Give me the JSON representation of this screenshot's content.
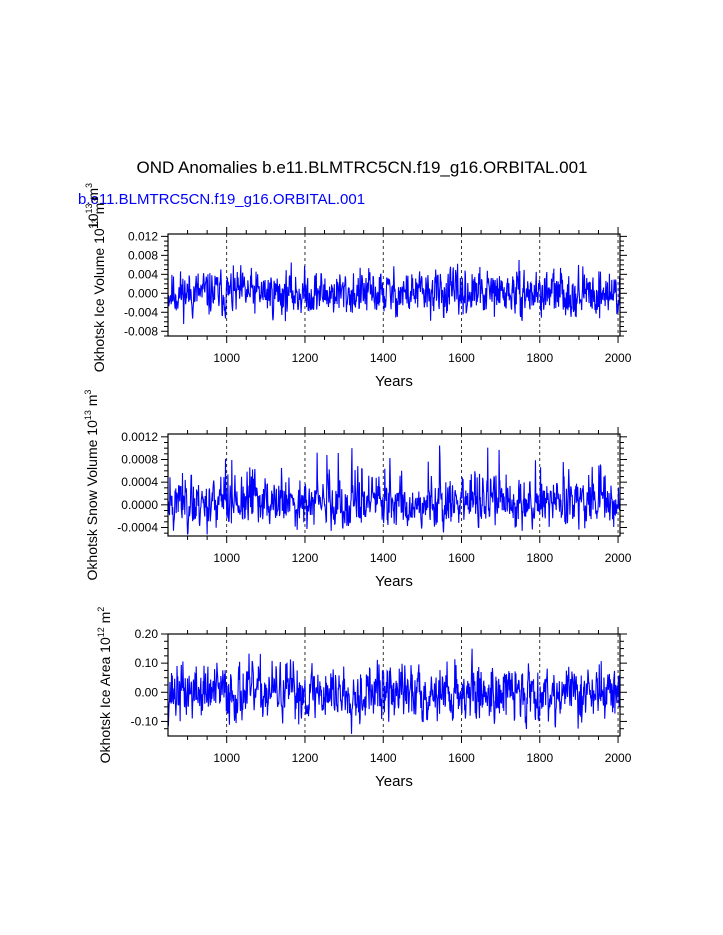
{
  "title": "OND Anomalies b.e11.BLMTRC5CN.f19_g16.ORBITAL.001",
  "subtitle": "b.e11.BLMTRC5CN.f19_g16.ORBITAL.001",
  "colors": {
    "series": "#0000ff",
    "subtitle": "#0000ff",
    "axes": "#000000"
  },
  "chart_data": [
    {
      "type": "line",
      "title": "",
      "xlabel": "Years",
      "ylabel": "Okhotsk Ice Volume 10",
      "ylabel_exp": "13",
      "ylabel_unit": " m",
      "ylabel_unit_exp": "3",
      "corner_label": "10",
      "corner_label_exp": "13",
      "corner_unit": " m",
      "corner_unit_exp": "3",
      "xlim": [
        850,
        2005
      ],
      "ylim": [
        -0.009,
        0.0125
      ],
      "xticks": [
        1000,
        1200,
        1400,
        1600,
        1800,
        2000
      ],
      "yticks": [
        -0.008,
        -0.004,
        0.0,
        0.004,
        0.008,
        0.012
      ],
      "yticklabels": [
        "-0.008",
        "-0.004",
        "0.000",
        "0.004",
        "0.008",
        "0.012"
      ],
      "grid_x": true,
      "series": [
        {
          "color": "#0000ff",
          "amplitude": 0.006,
          "sigma": 0.0022,
          "seed": 11
        }
      ]
    },
    {
      "type": "line",
      "title": "",
      "xlabel": "Years",
      "ylabel": "Okhotsk Snow Volume 10",
      "ylabel_exp": "13",
      "ylabel_unit": " m",
      "ylabel_unit_exp": "3",
      "xlim": [
        850,
        2005
      ],
      "ylim": [
        -0.00055,
        0.00125
      ],
      "xticks": [
        1000,
        1200,
        1400,
        1600,
        1800,
        2000
      ],
      "yticks": [
        -0.0004,
        0.0,
        0.0004,
        0.0008,
        0.0012
      ],
      "yticklabels": [
        "-0.0004",
        "0.0000",
        "0.0004",
        "0.0008",
        "0.0012"
      ],
      "grid_x": true,
      "series": [
        {
          "color": "#0000ff",
          "amplitude": 0.0003,
          "sigma": 0.00018,
          "seed": 23,
          "skew": true
        }
      ]
    },
    {
      "type": "line",
      "title": "",
      "xlabel": "Years",
      "ylabel": "Okhotsk Ice Area 10",
      "ylabel_exp": "12",
      "ylabel_unit": " m",
      "ylabel_unit_exp": "2",
      "xlim": [
        850,
        2005
      ],
      "ylim": [
        -0.15,
        0.2
      ],
      "xticks": [
        1000,
        1200,
        1400,
        1600,
        1800,
        2000
      ],
      "yticks": [
        -0.1,
        0.0,
        0.1,
        0.2
      ],
      "yticklabels": [
        "-0.10",
        "0.00",
        "0.10",
        "0.20"
      ],
      "grid_x": true,
      "series": [
        {
          "color": "#0000ff",
          "amplitude": 0.06,
          "sigma": 0.045,
          "seed": 37
        }
      ]
    }
  ]
}
